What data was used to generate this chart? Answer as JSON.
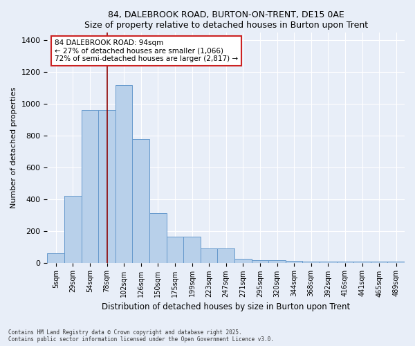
{
  "title": "84, DALEBROOK ROAD, BURTON-ON-TRENT, DE15 0AE",
  "subtitle": "Size of property relative to detached houses in Burton upon Trent",
  "xlabel": "Distribution of detached houses by size in Burton upon Trent",
  "ylabel": "Number of detached properties",
  "categories": [
    "5sqm",
    "29sqm",
    "54sqm",
    "78sqm",
    "102sqm",
    "126sqm",
    "150sqm",
    "175sqm",
    "199sqm",
    "223sqm",
    "247sqm",
    "271sqm",
    "295sqm",
    "320sqm",
    "344sqm",
    "368sqm",
    "392sqm",
    "416sqm",
    "441sqm",
    "465sqm",
    "489sqm"
  ],
  "values": [
    60,
    420,
    960,
    960,
    1120,
    780,
    310,
    165,
    165,
    90,
    90,
    25,
    15,
    15,
    10,
    8,
    5,
    5,
    5,
    5,
    5
  ],
  "bar_color": "#b8d0ea",
  "bar_edge_color": "#6699cc",
  "vline_x": 3.0,
  "vline_color": "#8b0000",
  "annotation_text": "84 DALEBROOK ROAD: 94sqm\n← 27% of detached houses are smaller (1,066)\n72% of semi-detached houses are larger (2,817) →",
  "annotation_box_color": "white",
  "annotation_box_edge_color": "#cc2222",
  "ylim": [
    0,
    1450
  ],
  "footnote": "Contains HM Land Registry data © Crown copyright and database right 2025.\nContains public sector information licensed under the Open Government Licence v3.0.",
  "background_color": "#e8eef8"
}
